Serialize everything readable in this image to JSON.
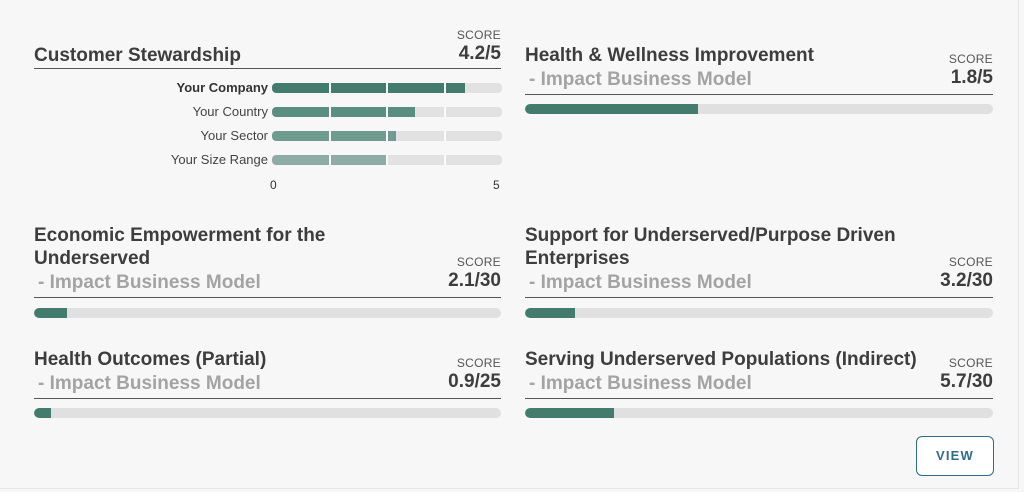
{
  "score_label": "SCORE",
  "accent_color": "#437b6c",
  "track_color": "#e0e0e0",
  "cards": [
    {
      "title": "Customer Stewardship",
      "subtitle": "",
      "score": "4.2/5",
      "progress": 0.84,
      "comparison": {
        "rows": [
          {
            "label": "Your Company",
            "value": 4.2,
            "color": "#437b6c"
          },
          {
            "label": "Your Country",
            "value": 3.1,
            "color": "#5a8e80"
          },
          {
            "label": "Your Sector",
            "value": 2.7,
            "color": "#6f9c8f"
          },
          {
            "label": "Your Size Range",
            "value": 2.5,
            "color": "#8eaca4"
          }
        ],
        "axis_min": "0",
        "axis_max": "5",
        "max": 5
      }
    },
    {
      "title": "Health & Wellness Improvement",
      "subtitle": "- Impact Business Model",
      "score": "1.8/5",
      "progress": 0.37
    },
    {
      "title": "Economic Empowerment for the Underserved",
      "subtitle": "- Impact Business Model",
      "score": "2.1/30",
      "progress": 0.07
    },
    {
      "title": "Support for Underserved/Purpose Driven Enterprises",
      "subtitle": "- Impact Business Model",
      "score": "3.2/30",
      "progress": 0.107
    },
    {
      "title": "Health Outcomes (Partial)",
      "subtitle": "- Impact Business Model",
      "score": "0.9/25",
      "progress": 0.036
    },
    {
      "title": "Serving Underserved Populations (Indirect)",
      "subtitle": "- Impact Business Model",
      "score": "5.7/30",
      "progress": 0.19
    }
  ],
  "view_button": "VIEW"
}
